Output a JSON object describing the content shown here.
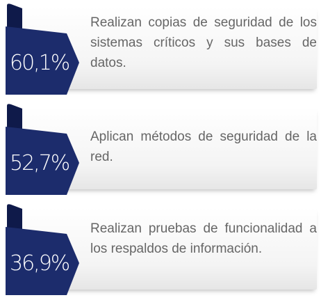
{
  "items": [
    {
      "percent": "60,1%",
      "text": "Realizan copias de seguridad de los sistemas críticos y sus bases de datos."
    },
    {
      "percent": "52,7%",
      "text": "Aplican métodos de seguridad de la red."
    },
    {
      "percent": "36,9%",
      "text": "Realizan pruebas de funcionalidad a los respaldos de información."
    }
  ]
}
